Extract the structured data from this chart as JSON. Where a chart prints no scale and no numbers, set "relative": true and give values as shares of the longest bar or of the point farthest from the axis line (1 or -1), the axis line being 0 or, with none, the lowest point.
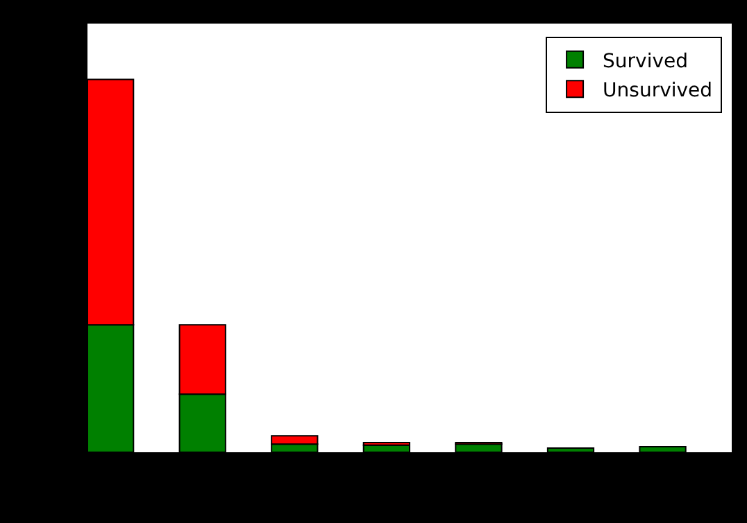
{
  "chart_data": {
    "type": "bar",
    "stacked": true,
    "relative": true,
    "categories": [
      null,
      null,
      null,
      null,
      null,
      null,
      null
    ],
    "series": [
      {
        "name": "Survived",
        "color": "#008000",
        "values": [
          0.342,
          0.156,
          0.022,
          0.019,
          0.022,
          0.011,
          0.015
        ]
      },
      {
        "name": "Unsurvived",
        "color": "#ff0000",
        "values": [
          0.658,
          0.186,
          0.022,
          0.007,
          0.004,
          null,
          null
        ]
      }
    ],
    "legend": "top right"
  }
}
